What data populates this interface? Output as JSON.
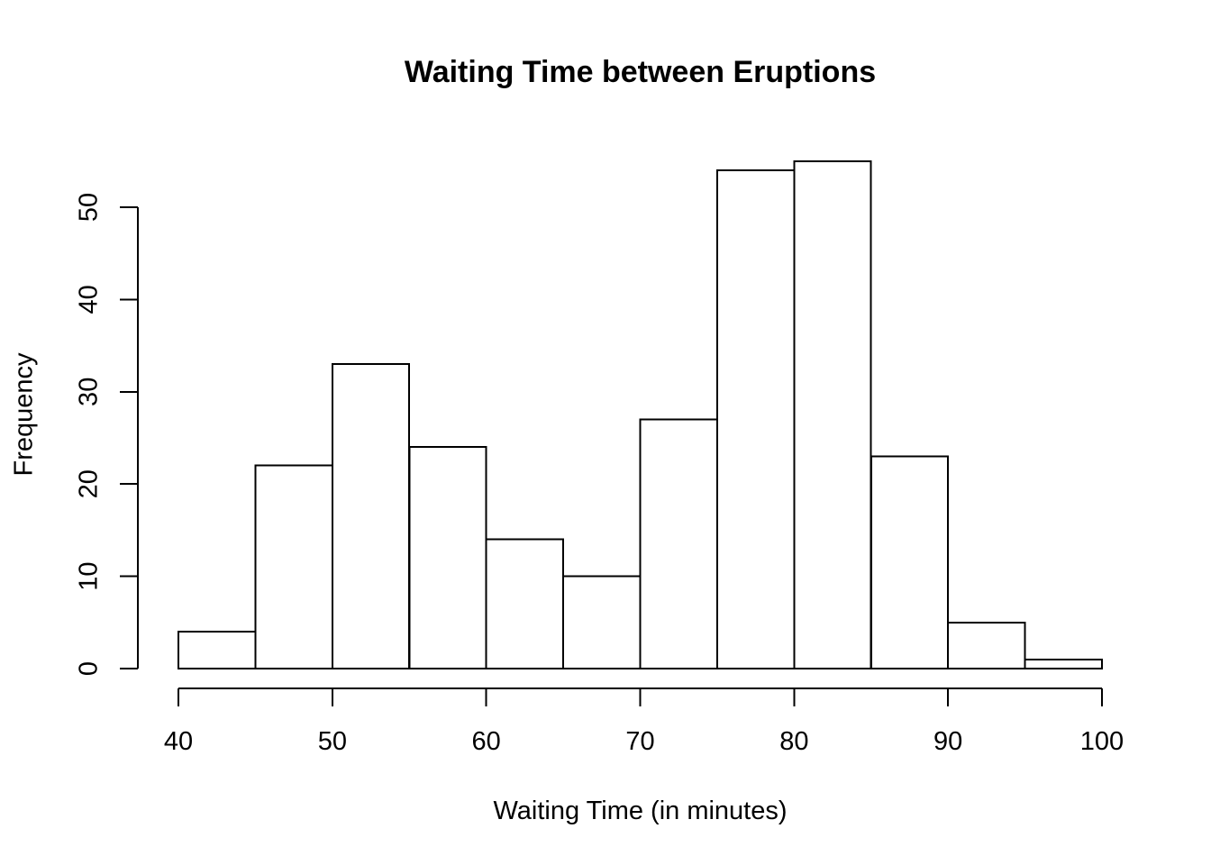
{
  "page": {
    "background_color": "#ffffff",
    "text_color": "#000000"
  },
  "chart_data": {
    "type": "bar",
    "chart_kind": "histogram",
    "title": "Waiting Time between Eruptions",
    "xlabel": "Waiting Time (in minutes)",
    "ylabel": "Frequency",
    "bin_edges": [
      40,
      45,
      50,
      55,
      60,
      65,
      70,
      75,
      80,
      85,
      90,
      95,
      100
    ],
    "counts": [
      4,
      22,
      33,
      24,
      14,
      10,
      27,
      54,
      55,
      23,
      5,
      1
    ],
    "x_ticks": [
      40,
      50,
      60,
      70,
      80,
      90,
      100
    ],
    "y_ticks": [
      0,
      10,
      20,
      30,
      40,
      50
    ],
    "xlim": [
      40,
      100
    ],
    "ylim": [
      0,
      55
    ],
    "grid": false,
    "legend": false,
    "bar_fill": "#ffffff",
    "bar_stroke": "#000000",
    "axis_color": "#000000",
    "tick_label_color": "#000000"
  }
}
